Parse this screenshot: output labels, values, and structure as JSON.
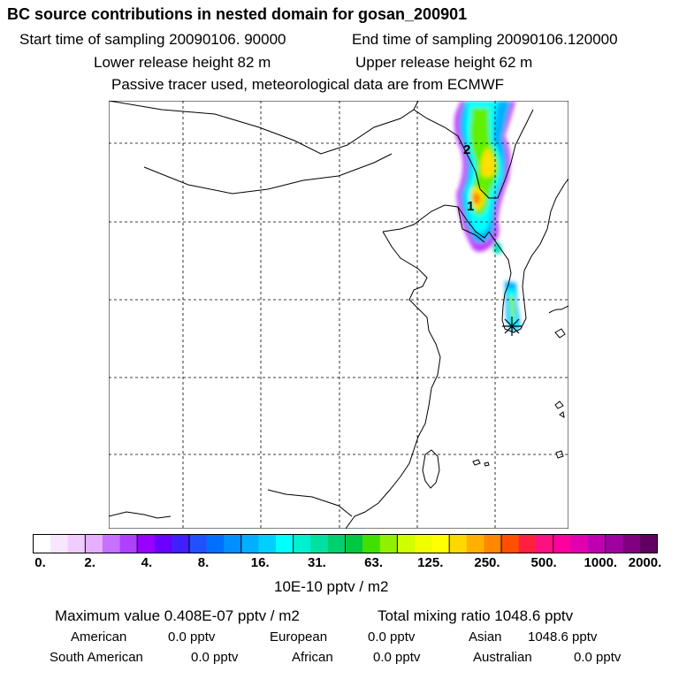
{
  "header": {
    "title": "BC  source contributions in nested domain for gosan_200901",
    "start": "Start time of sampling 20090106. 90000",
    "end": "End time of sampling 20090106.120000",
    "lower": "Lower release height   82 m",
    "upper": "Upper release height   62 m",
    "tracer": "Passive tracer used, meteorological data are from ECMWF"
  },
  "map": {
    "markers": [
      "1",
      "2"
    ],
    "receptor_icon": "star-receptor-icon"
  },
  "colorbar": {
    "labels": [
      "0.",
      "2.",
      "4.",
      "8.",
      "16.",
      "31.",
      "63.",
      "125.",
      "250.",
      "500.",
      "1000.",
      "2000."
    ],
    "colors": [
      "#ffffff",
      "#f8e6ff",
      "#f0ccff",
      "#e6b0ff",
      "#c870ff",
      "#b040ff",
      "#9800ff",
      "#6a00ff",
      "#4020ff",
      "#2050ff",
      "#0070ff",
      "#0090ff",
      "#00b0ff",
      "#00d0ff",
      "#00ffff",
      "#00f0d0",
      "#00e0a0",
      "#00d070",
      "#00c840",
      "#40e000",
      "#90f000",
      "#d0ff00",
      "#f0ff00",
      "#ffff00",
      "#ffd800",
      "#ffb000",
      "#ff8800",
      "#ff5000",
      "#ff2040",
      "#ff1080",
      "#ff00a0",
      "#e000b0",
      "#c000b0",
      "#a000a0",
      "#800080",
      "#600060"
    ],
    "unit": "10E-10 pptv / m2"
  },
  "footer": {
    "max": "Maximum value  0.408E-07 pptv / m2",
    "total": "Total mixing ratio      1048.6 pptv",
    "american_label": "American",
    "american_value": "0.0 pptv",
    "european_label": "European",
    "european_value": "0.0 pptv",
    "asian_label": "Asian",
    "asian_value": "1048.6 pptv",
    "south_american_label": "South American",
    "south_american_value": "0.0 pptv",
    "african_label": "African",
    "african_value": "0.0 pptv",
    "australian_label": "Australian",
    "australian_value": "0.0 pptv"
  }
}
